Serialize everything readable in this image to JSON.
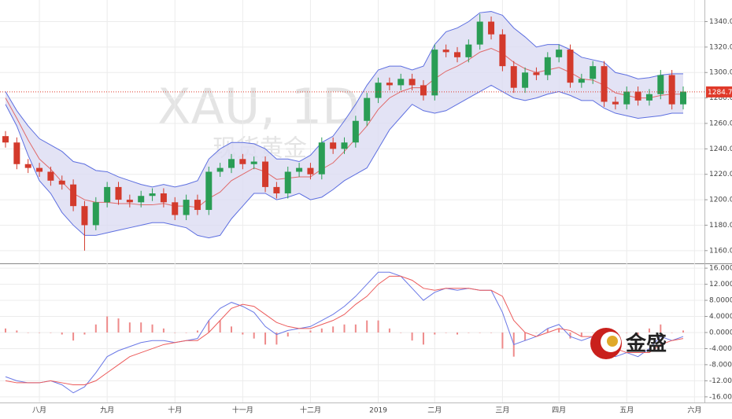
{
  "chart_data": [
    {
      "type": "candlestick",
      "title": "XAU, 1D",
      "subtitle": "现货黄金",
      "categories": [
        null,
        null,
        null,
        "八月",
        null,
        null,
        null,
        null,
        null,
        "九月",
        null,
        null,
        null,
        null,
        null,
        "十月",
        null,
        null,
        null,
        null,
        null,
        "十一月",
        null,
        null,
        null,
        null,
        null,
        "十二月",
        null,
        null,
        null,
        null,
        null,
        "2019",
        null,
        null,
        null,
        null,
        "二月",
        null,
        null,
        null,
        null,
        null,
        "三月",
        null,
        null,
        null,
        null,
        "四月",
        null,
        null,
        null,
        null,
        null,
        "五月",
        null,
        null,
        null,
        null,
        null,
        "六月"
      ],
      "open": [
        1250,
        1245,
        1228,
        1225,
        1222,
        1215,
        1212,
        1195,
        1180,
        1198,
        1210,
        1200,
        1198,
        1203,
        1205,
        1198,
        1188,
        1200,
        1192,
        1222,
        1225,
        1232,
        1228,
        1230,
        1210,
        1205,
        1222,
        1225,
        1220,
        1245,
        1240,
        1245,
        1262,
        1280,
        1292,
        1290,
        1295,
        1290,
        1282,
        1318,
        1316,
        1312,
        1322,
        1340,
        1330,
        1305,
        1288,
        1300,
        1298,
        1312,
        1318,
        1292,
        1295,
        1305,
        1277,
        1275,
        1285,
        1278,
        1283,
        1298,
        1275,
        null
      ],
      "high": [
        1254,
        1249,
        1232,
        1229,
        1226,
        1219,
        1216,
        1199,
        1202,
        1214,
        1214,
        1204,
        1207,
        1209,
        1209,
        1202,
        1204,
        1204,
        1226,
        1229,
        1236,
        1236,
        1234,
        1234,
        1214,
        1226,
        1229,
        1229,
        1249,
        1249,
        1249,
        1266,
        1284,
        1296,
        1296,
        1299,
        1299,
        1294,
        1322,
        1322,
        1320,
        1326,
        1346,
        1344,
        1334,
        1309,
        1304,
        1304,
        1316,
        1322,
        1322,
        1299,
        1309,
        1309,
        1281,
        1289,
        1289,
        1287,
        1302,
        1302,
        1289,
        null
      ],
      "low": [
        1241,
        1224,
        1221,
        1218,
        1211,
        1208,
        1191,
        1160,
        1176,
        1194,
        1196,
        1194,
        1194,
        1199,
        1194,
        1184,
        1184,
        1188,
        1188,
        1218,
        1221,
        1224,
        1224,
        1206,
        1201,
        1201,
        1218,
        1216,
        1216,
        1236,
        1236,
        1241,
        1258,
        1276,
        1286,
        1286,
        1286,
        1278,
        1278,
        1312,
        1308,
        1308,
        1318,
        1326,
        1301,
        1284,
        1284,
        1294,
        1294,
        1308,
        1288,
        1288,
        1291,
        1273,
        1271,
        1271,
        1274,
        1274,
        1279,
        1271,
        1271,
        null
      ],
      "close": [
        1245,
        1228,
        1225,
        1222,
        1215,
        1212,
        1195,
        1180,
        1198,
        1210,
        1200,
        1198,
        1203,
        1205,
        1198,
        1188,
        1200,
        1192,
        1222,
        1225,
        1232,
        1228,
        1230,
        1210,
        1205,
        1222,
        1225,
        1220,
        1245,
        1240,
        1245,
        1262,
        1280,
        1292,
        1290,
        1295,
        1290,
        1282,
        1318,
        1316,
        1312,
        1322,
        1340,
        1330,
        1305,
        1288,
        1300,
        1298,
        1312,
        1318,
        1292,
        1295,
        1305,
        1277,
        1275,
        1285,
        1278,
        1283,
        1298,
        1275,
        1285,
        null
      ],
      "up_color": "#2a9d55",
      "down_color": "#d33a2c",
      "series": [
        {
          "name": "upper",
          "color": "#5d6fe0",
          "values": [
            1285,
            1270,
            1258,
            1248,
            1243,
            1238,
            1230,
            1228,
            1223,
            1222,
            1218,
            1215,
            1212,
            1210,
            1212,
            1210,
            1212,
            1215,
            1232,
            1240,
            1245,
            1245,
            1244,
            1240,
            1232,
            1232,
            1230,
            1235,
            1245,
            1250,
            1262,
            1275,
            1290,
            1302,
            1305,
            1305,
            1302,
            1305,
            1322,
            1332,
            1335,
            1340,
            1347,
            1348,
            1345,
            1335,
            1328,
            1320,
            1322,
            1322,
            1318,
            1312,
            1310,
            1308,
            1300,
            1298,
            1295,
            1296,
            1298,
            1299,
            1299,
            null
          ]
        },
        {
          "name": "middle",
          "color": "#e06a6a",
          "values": [
            1280,
            1264,
            1247,
            1232,
            1224,
            1214,
            1205,
            1200,
            1198,
            1198,
            1197,
            1197,
            1196,
            1196,
            1197,
            1195,
            1195,
            1194,
            1201,
            1206,
            1215,
            1220,
            1225,
            1222,
            1216,
            1217,
            1218,
            1218,
            1224,
            1229,
            1238,
            1248,
            1258,
            1271,
            1280,
            1285,
            1288,
            1288,
            1295,
            1301,
            1305,
            1310,
            1316,
            1319,
            1315,
            1308,
            1303,
            1300,
            1302,
            1304,
            1300,
            1295,
            1294,
            1290,
            1284,
            1282,
            1280,
            1280,
            1282,
            1283,
            1283,
            null
          ]
        },
        {
          "name": "lower",
          "color": "#5d6fe0",
          "values": [
            1275,
            1258,
            1235,
            1215,
            1205,
            1190,
            1180,
            1172,
            1172,
            1174,
            1176,
            1178,
            1180,
            1182,
            1182,
            1180,
            1178,
            1172,
            1170,
            1172,
            1185,
            1195,
            1205,
            1205,
            1200,
            1202,
            1205,
            1200,
            1202,
            1208,
            1215,
            1220,
            1225,
            1240,
            1255,
            1265,
            1275,
            1270,
            1268,
            1270,
            1275,
            1280,
            1285,
            1290,
            1285,
            1280,
            1278,
            1280,
            1283,
            1285,
            1282,
            1278,
            1278,
            1272,
            1268,
            1266,
            1264,
            1265,
            1266,
            1268,
            1268,
            null
          ]
        }
      ],
      "band_fill": "#dcdcf2",
      "last_price": 1284.75,
      "last_color": "#e03a2a",
      "ylim": [
        1150,
        1357
      ],
      "yticks": [
        {
          "value": 1160,
          "label": "1160.00"
        },
        {
          "value": 1180,
          "label": "1180.00"
        },
        {
          "value": 1200,
          "label": "1200.00"
        },
        {
          "value": 1220,
          "label": "1220.00"
        },
        {
          "value": 1240,
          "label": "1240.00"
        },
        {
          "value": 1260,
          "label": "1260.00"
        },
        {
          "value": 1280,
          "label": "1280.00"
        },
        {
          "value": 1300,
          "label": "1300.00"
        },
        {
          "value": 1320,
          "label": "1320.00"
        },
        {
          "value": 1340,
          "label": "1340.00"
        }
      ],
      "grid": true
    },
    {
      "type": "macd",
      "series": [
        {
          "name": "dif",
          "color": "#6a78e6",
          "values": [
            -11,
            -12,
            -12.5,
            -12.5,
            -12,
            -13,
            -15,
            -13.5,
            -10,
            -6,
            -4.5,
            -3.5,
            -2.5,
            -2,
            -2,
            -2.5,
            -2,
            -1.5,
            3,
            6,
            7.5,
            6.5,
            5,
            1.5,
            -0.5,
            0.5,
            1,
            1.5,
            3,
            4.5,
            6.5,
            9,
            12,
            15,
            15,
            14,
            11,
            8,
            10,
            11,
            10.5,
            11,
            10.5,
            10.5,
            5,
            -3,
            -2,
            -1,
            1,
            2,
            -1,
            -2,
            -1,
            -4,
            -6,
            -5,
            -6,
            -4,
            -1,
            -2,
            -1,
            null
          ]
        },
        {
          "name": "dea",
          "color": "#ec5b5b",
          "values": [
            -12,
            -12.5,
            -12.5,
            -12.5,
            -12,
            -12.5,
            -13,
            -13,
            -12,
            -10,
            -8,
            -6,
            -5,
            -4,
            -3,
            -2.5,
            -2,
            -2,
            0,
            3,
            6,
            7,
            6.5,
            4.5,
            2.5,
            1.5,
            1,
            1,
            2,
            3,
            4.5,
            7,
            9,
            12,
            14,
            14,
            13,
            11,
            10.5,
            11,
            11,
            11,
            10.5,
            10.5,
            9,
            3,
            0,
            -1,
            0,
            1,
            0.5,
            -1,
            -1,
            -2,
            -4,
            -5,
            -5,
            -5,
            -3,
            -2,
            -1.5,
            null
          ]
        },
        {
          "name": "histogram",
          "color": "#ee8a8a",
          "values": [
            1,
            0.5,
            0,
            0,
            0,
            -0.5,
            -2,
            -0.5,
            2,
            4,
            3.5,
            2.5,
            2.5,
            2,
            1,
            0,
            0,
            0.5,
            3,
            3,
            1.5,
            -0.5,
            -1.5,
            -3,
            -3,
            -1,
            0,
            0.5,
            1,
            1.5,
            2,
            2,
            3,
            3,
            1,
            0,
            -2,
            -3,
            -0.5,
            0,
            -0.5,
            0,
            0,
            0,
            -4,
            -6,
            -2,
            0,
            1,
            1,
            -1.5,
            -1,
            0,
            -2,
            -2,
            0,
            -1,
            1,
            2,
            0,
            0.5,
            null
          ]
        }
      ],
      "ylim": [
        -17.4,
        17
      ],
      "yticks": [
        {
          "value": 16,
          "label": "16.0000"
        },
        {
          "value": 12,
          "label": "12.0000"
        },
        {
          "value": 8,
          "label": "8.0000"
        },
        {
          "value": 4,
          "label": "4.0000"
        },
        {
          "value": 0,
          "label": "0.0000"
        },
        {
          "value": -4,
          "label": "-4.0000"
        },
        {
          "value": -8,
          "label": "-8.0000"
        },
        {
          "value": -12,
          "label": "-12.000"
        },
        {
          "value": -16,
          "label": "-16.000"
        }
      ],
      "grid": true
    }
  ],
  "logo": "金盛"
}
